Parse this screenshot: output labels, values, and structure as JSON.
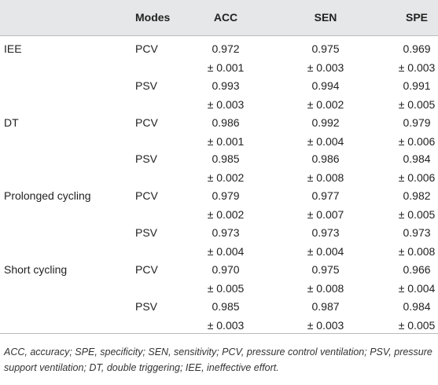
{
  "table": {
    "header": [
      "Modes",
      "ACC",
      "SEN",
      "SPE"
    ],
    "groups": [
      {
        "label": "IEE",
        "rows": [
          {
            "mode": "PCV",
            "cells": [
              [
                "0.972",
                "± 0.001"
              ],
              [
                "0.975",
                "± 0.003"
              ],
              [
                "0.969",
                "± 0.003"
              ]
            ]
          },
          {
            "mode": "PSV",
            "cells": [
              [
                "0.993",
                "± 0.003"
              ],
              [
                "0.994",
                "± 0.002"
              ],
              [
                "0.991",
                "± 0.005"
              ]
            ]
          }
        ]
      },
      {
        "label": "DT",
        "rows": [
          {
            "mode": "PCV",
            "cells": [
              [
                "0.986",
                "± 0.001"
              ],
              [
                "0.992",
                "± 0.004"
              ],
              [
                "0.979",
                "± 0.006"
              ]
            ]
          },
          {
            "mode": "PSV",
            "cells": [
              [
                "0.985",
                "± 0.002"
              ],
              [
                "0.986",
                "± 0.008"
              ],
              [
                "0.984",
                "± 0.006"
              ]
            ]
          }
        ]
      },
      {
        "label": "Prolonged cycling",
        "rows": [
          {
            "mode": "PCV",
            "cells": [
              [
                "0.979",
                "± 0.002"
              ],
              [
                "0.977",
                "± 0.007"
              ],
              [
                "0.982",
                "± 0.005"
              ]
            ]
          },
          {
            "mode": "PSV",
            "cells": [
              [
                "0.973",
                "± 0.004"
              ],
              [
                "0.973",
                "± 0.004"
              ],
              [
                "0.973",
                "± 0.008"
              ]
            ]
          }
        ]
      },
      {
        "label": "Short cycling",
        "rows": [
          {
            "mode": "PCV",
            "cells": [
              [
                "0.970",
                "± 0.005"
              ],
              [
                "0.975",
                "± 0.008"
              ],
              [
                "0.966",
                "± 0.004"
              ]
            ]
          },
          {
            "mode": "PSV",
            "cells": [
              [
                "0.985",
                "± 0.003"
              ],
              [
                "0.987",
                "± 0.003"
              ],
              [
                "0.984",
                "± 0.005"
              ]
            ]
          }
        ]
      }
    ],
    "footnote": "ACC, accuracy; SPE, specificity; SEN, sensitivity; PCV, pressure control ventilation; PSV, pressure support ventilation; DT, double triggering; IEE, ineffective effort."
  }
}
